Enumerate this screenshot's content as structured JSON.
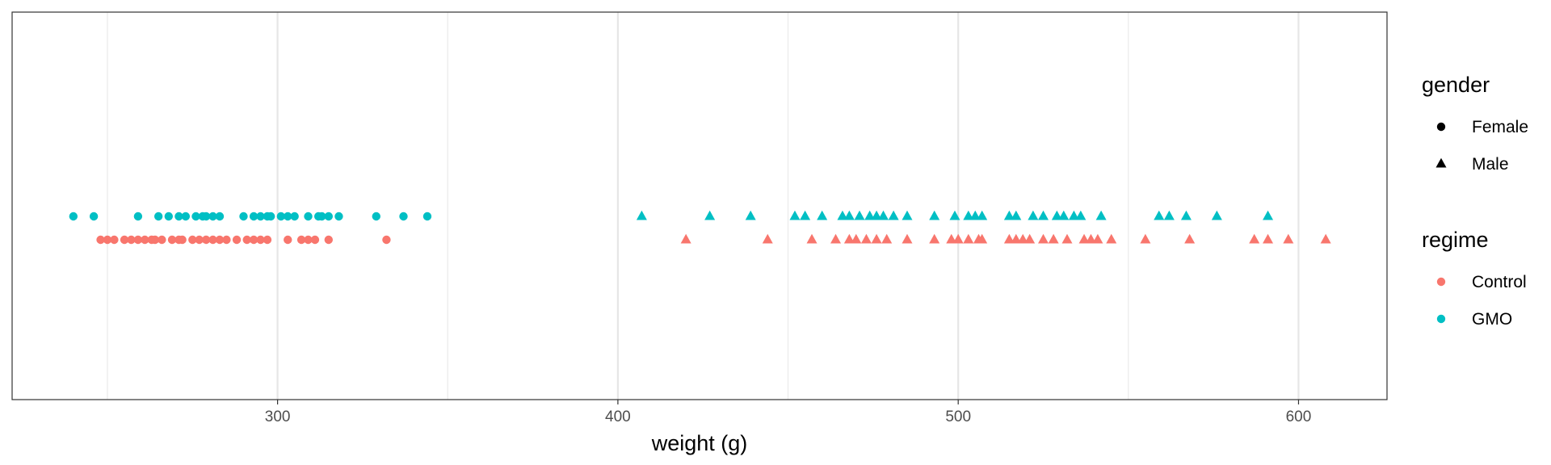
{
  "chart_data": {
    "type": "scatter",
    "xlabel": "weight (g)",
    "ylabel": "",
    "xlim": [
      222,
      626
    ],
    "x_ticks": [
      300,
      400,
      500,
      600
    ],
    "x_tick_labels": [
      "300",
      "400",
      "500",
      "600"
    ],
    "x_minor_ticks": [
      250,
      350,
      450,
      550
    ],
    "grid": true,
    "legend_position": "right",
    "legends": [
      {
        "title": "gender",
        "entries": [
          {
            "label": "Female",
            "shape": "circle"
          },
          {
            "label": "Male",
            "shape": "triangle"
          }
        ]
      },
      {
        "title": "regime",
        "entries": [
          {
            "label": "Control",
            "color": "#F8766D"
          },
          {
            "label": "GMO",
            "color": "#00BFC4"
          }
        ]
      }
    ],
    "series": [
      {
        "regime": "GMO",
        "gender": "Female",
        "color": "#00BFC4",
        "shape": "circle",
        "x": [
          240,
          246,
          259,
          265,
          268,
          271,
          273,
          276,
          278,
          279,
          281,
          283,
          290,
          293,
          295,
          297,
          298,
          301,
          303,
          305,
          309,
          312,
          313,
          315,
          318,
          329,
          337,
          344
        ]
      },
      {
        "regime": "Control",
        "gender": "Female",
        "color": "#F8766D",
        "shape": "circle",
        "x": [
          248,
          250,
          252,
          255,
          257,
          259,
          261,
          263,
          264,
          266,
          269,
          271,
          272,
          275,
          277,
          279,
          281,
          283,
          285,
          288,
          291,
          293,
          295,
          297,
          303,
          307,
          309,
          311,
          315,
          332
        ]
      },
      {
        "regime": "GMO",
        "gender": "Male",
        "color": "#00BFC4",
        "shape": "triangle",
        "x": [
          407,
          427,
          439,
          452,
          455,
          460,
          466,
          468,
          471,
          474,
          476,
          478,
          481,
          485,
          493,
          499,
          503,
          505,
          507,
          515,
          517,
          522,
          525,
          529,
          531,
          534,
          536,
          542,
          559,
          562,
          567,
          576,
          591
        ]
      },
      {
        "regime": "Control",
        "gender": "Male",
        "color": "#F8766D",
        "shape": "triangle",
        "x": [
          420,
          444,
          457,
          464,
          468,
          470,
          473,
          476,
          479,
          485,
          493,
          498,
          500,
          503,
          506,
          507,
          515,
          517,
          519,
          521,
          525,
          528,
          532,
          537,
          539,
          541,
          545,
          555,
          568,
          587,
          591,
          597,
          608
        ]
      }
    ]
  }
}
